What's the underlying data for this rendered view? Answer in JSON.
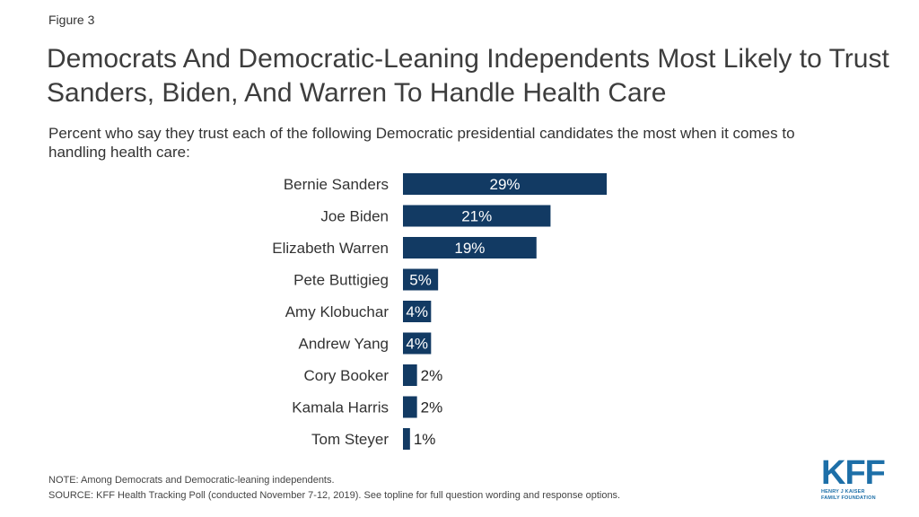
{
  "figure_label": "Figure 3",
  "title": "Democrats And Democratic-Leaning Independents Most Likely to Trust Sanders, Biden, And Warren To Handle Health Care",
  "subtitle": "Percent who say they trust each of the following Democratic presidential candidates the most when it comes to handling health care:",
  "chart_data": {
    "type": "bar",
    "orientation": "horizontal",
    "categories": [
      "Bernie Sanders",
      "Joe Biden",
      "Elizabeth Warren",
      "Pete Buttigieg",
      "Amy Klobuchar",
      "Andrew Yang",
      "Cory Booker",
      "Kamala Harris",
      "Tom Steyer"
    ],
    "values": [
      29,
      21,
      19,
      5,
      4,
      4,
      2,
      2,
      1
    ],
    "data_labels": [
      "29%",
      "21%",
      "19%",
      "5%",
      "4%",
      "4%",
      "2%",
      "2%",
      "1%"
    ],
    "bar_color": "#123a63",
    "grid": false,
    "legend": "none"
  },
  "footer": {
    "note": "NOTE: Among Democrats and Democratic-leaning independents.",
    "source": "SOURCE: KFF Health Tracking Poll (conducted November 7-12, 2019). See topline for full question wording and response options."
  },
  "logo": {
    "mark": "KFF",
    "line1": "HENRY J KAISER",
    "line2": "FAMILY FOUNDATION",
    "color": "#1d6fa8"
  }
}
